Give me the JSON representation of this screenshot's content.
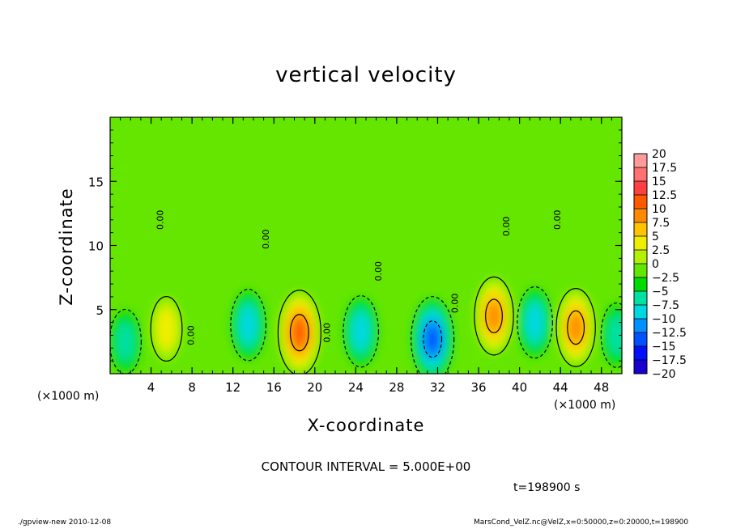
{
  "chart_data": {
    "type": "heatmap",
    "title": "vertical velocity",
    "xlabel": "X-coordinate",
    "ylabel": "Z-coordinate",
    "x_unit_left": "(×1000 m)",
    "x_unit_right": "(×1000 m)",
    "xlim": [
      0,
      50
    ],
    "ylim": [
      0,
      20
    ],
    "xticks": [
      "4",
      "8",
      "12",
      "16",
      "20",
      "24",
      "28",
      "32",
      "36",
      "40",
      "44",
      "48"
    ],
    "yticks": [
      "5",
      "10",
      "15"
    ],
    "contour_interval_text": "CONTOUR INTERVAL = 5.000E+00",
    "contour_labels": [
      "0.00",
      "0.00",
      "0.00",
      "0.00",
      "0.00",
      "0.00",
      "0.00",
      "0.00"
    ],
    "time_label": "t=198900 s",
    "colorbar": {
      "ticks": [
        "20",
        "17.5",
        "15",
        "12.5",
        "10",
        "7.5",
        "5",
        "2.5",
        "0",
        "−2.5",
        "−5",
        "−7.5",
        "−10",
        "−12.5",
        "−15",
        "−17.5",
        "−20"
      ],
      "colors": [
        "#ff9a9a",
        "#ff7070",
        "#ff4040",
        "#ff5a00",
        "#ff8a00",
        "#ffc400",
        "#f0ee00",
        "#b4f000",
        "#64e600",
        "#00dc00",
        "#00e0a0",
        "#00d8e0",
        "#0090ff",
        "#0050ff",
        "#0010ff",
        "#1a00d0",
        "#6a00c0"
      ],
      "range": [
        -20,
        20
      ],
      "step": 2.5
    },
    "features": [
      {
        "kind": "updraft",
        "x": 5.5,
        "z": 3.5,
        "w": 5
      },
      {
        "kind": "downdraft",
        "x": 1.5,
        "z": 2.5,
        "w": -5
      },
      {
        "kind": "downdraft",
        "x": 13.5,
        "z": 3.8,
        "w": -7.5
      },
      {
        "kind": "updraft",
        "x": 18.5,
        "z": 3.2,
        "w": 12.5
      },
      {
        "kind": "downdraft",
        "x": 24.5,
        "z": 3.3,
        "w": -7.5
      },
      {
        "kind": "downdraft",
        "x": 31.5,
        "z": 2.7,
        "w": -12.5
      },
      {
        "kind": "updraft",
        "x": 37.5,
        "z": 4.5,
        "w": 10
      },
      {
        "kind": "downdraft",
        "x": 41.5,
        "z": 4.0,
        "w": -7.5
      },
      {
        "kind": "updraft",
        "x": 45.5,
        "z": 3.6,
        "w": 10
      },
      {
        "kind": "downdraft",
        "x": 49.5,
        "z": 3.0,
        "w": -5
      }
    ]
  },
  "footer": {
    "program": "./gpview-new   2010-12-08",
    "file": "MarsCond_VelZ.nc@VelZ,x=0:50000,z=0:20000,t=198900"
  }
}
